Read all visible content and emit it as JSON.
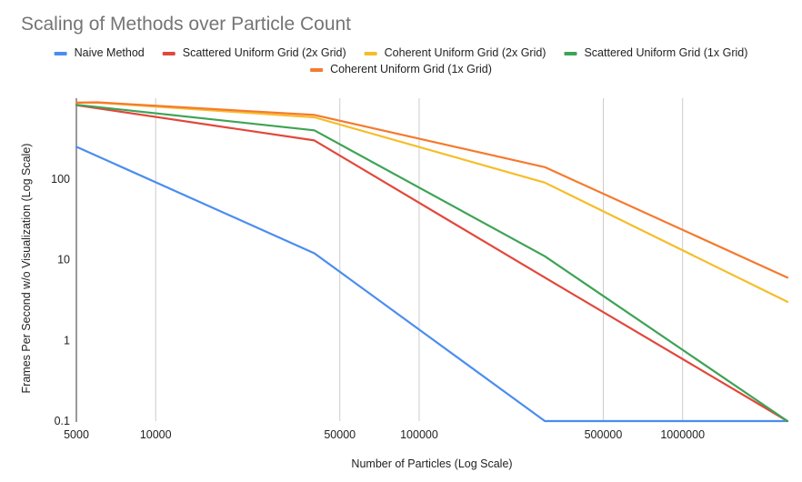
{
  "chart_data": {
    "type": "line",
    "title": "Scaling of Methods over Particle Count",
    "xlabel": "Number of Particles (Log Scale)",
    "ylabel": "Frames Per Second w/o Visualization (Log Scale)",
    "x_scale": "log",
    "y_scale": "log",
    "xlim": [
      5000,
      2500000
    ],
    "ylim": [
      0.1,
      1000
    ],
    "x_ticks": [
      5000,
      10000,
      50000,
      100000,
      500000,
      1000000
    ],
    "x_tick_labels": [
      "5000",
      "10000",
      "50000",
      "100000",
      "500000",
      "1000000"
    ],
    "y_ticks": [
      0.1,
      1,
      10,
      100
    ],
    "y_tick_labels": [
      "0.1",
      "1",
      "10",
      "100"
    ],
    "grid": "vertical",
    "legend_position": "top",
    "series": [
      {
        "name": "Naive Method",
        "color": "#4a8df0",
        "x": [
          5000,
          40000,
          300000,
          2500000
        ],
        "y": [
          250,
          12,
          0.1,
          0.1
        ]
      },
      {
        "name": "Scattered Uniform Grid (2x Grid)",
        "color": "#e2473b",
        "x": [
          5000,
          40000,
          300000,
          2500000
        ],
        "y": [
          820,
          300,
          6,
          0.1
        ]
      },
      {
        "name": "Coherent Uniform Grid (2x Grid)",
        "color": "#f6bd2a",
        "x": [
          5000,
          6000,
          40000,
          300000,
          2500000
        ],
        "y": [
          880,
          880,
          580,
          90,
          3
        ]
      },
      {
        "name": "Scattered Uniform Grid (1x Grid)",
        "color": "#3ea355",
        "x": [
          5000,
          40000,
          300000,
          2500000
        ],
        "y": [
          830,
          400,
          11,
          0.1
        ]
      },
      {
        "name": "Coherent Uniform Grid (1x Grid)",
        "color": "#f57a2e",
        "x": [
          5000,
          6000,
          40000,
          300000,
          2500000
        ],
        "y": [
          880,
          890,
          620,
          140,
          6
        ]
      }
    ]
  }
}
